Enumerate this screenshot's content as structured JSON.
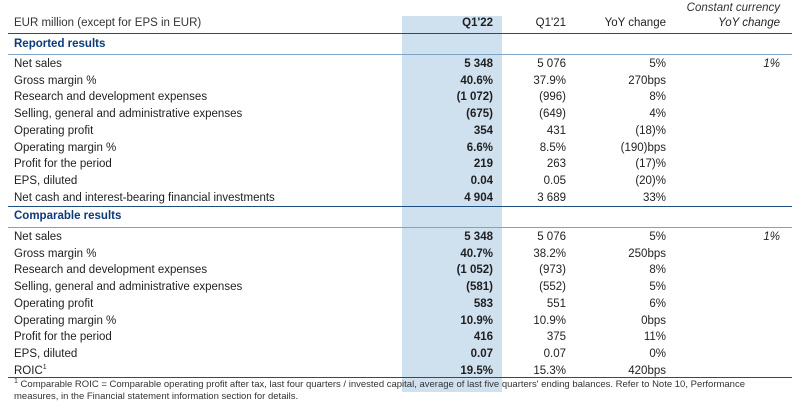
{
  "header": {
    "units": "EUR million (except for EPS in EUR)",
    "col_q1_22": "Q1'22",
    "col_q1_21": "Q1'21",
    "col_yoy": "YoY change",
    "col_cc_line1": "Constant currency",
    "col_cc_line2": "YoY change"
  },
  "reported": {
    "title": "Reported results",
    "rows": [
      {
        "label": "Net sales",
        "q1_22": "5 348",
        "q1_21": "5 076",
        "yoy": "5%",
        "cc": "1%"
      },
      {
        "label": "Gross margin %",
        "q1_22": "40.6%",
        "q1_21": "37.9%",
        "yoy": "270bps",
        "cc": ""
      },
      {
        "label": "Research and development expenses",
        "q1_22": "(1 072)",
        "q1_21": "(996)",
        "yoy": "8%",
        "cc": ""
      },
      {
        "label": "Selling, general and administrative expenses",
        "q1_22": "(675)",
        "q1_21": "(649)",
        "yoy": "4%",
        "cc": ""
      },
      {
        "label": "Operating profit",
        "q1_22": "354",
        "q1_21": "431",
        "yoy": "(18)%",
        "cc": ""
      },
      {
        "label": "Operating margin %",
        "q1_22": "6.6%",
        "q1_21": "8.5%",
        "yoy": "(190)bps",
        "cc": ""
      },
      {
        "label": "Profit for the period",
        "q1_22": "219",
        "q1_21": "263",
        "yoy": "(17)%",
        "cc": ""
      },
      {
        "label": "EPS, diluted",
        "q1_22": "0.04",
        "q1_21": "0.05",
        "yoy": "(20)%",
        "cc": ""
      },
      {
        "label": "Net cash and interest-bearing financial investments",
        "q1_22": "4 904",
        "q1_21": "3 689",
        "yoy": "33%",
        "cc": ""
      }
    ]
  },
  "comparable": {
    "title": "Comparable results",
    "rows": [
      {
        "label": "Net sales",
        "q1_22": "5 348",
        "q1_21": "5 076",
        "yoy": "5%",
        "cc": "1%"
      },
      {
        "label": "Gross margin %",
        "q1_22": "40.7%",
        "q1_21": "38.2%",
        "yoy": "250bps",
        "cc": ""
      },
      {
        "label": "Research and development expenses",
        "q1_22": "(1 052)",
        "q1_21": "(973)",
        "yoy": "8%",
        "cc": ""
      },
      {
        "label": "Selling, general and administrative expenses",
        "q1_22": "(581)",
        "q1_21": "(552)",
        "yoy": "5%",
        "cc": ""
      },
      {
        "label": "Operating profit",
        "q1_22": "583",
        "q1_21": "551",
        "yoy": "6%",
        "cc": ""
      },
      {
        "label": "Operating margin %",
        "q1_22": "10.9%",
        "q1_21": "10.9%",
        "yoy": "0bps",
        "cc": ""
      },
      {
        "label": "Profit for the period",
        "q1_22": "416",
        "q1_21": "375",
        "yoy": "11%",
        "cc": ""
      },
      {
        "label": "EPS, diluted",
        "q1_22": "0.07",
        "q1_21": "0.07",
        "yoy": "0%",
        "cc": ""
      },
      {
        "label": "ROIC",
        "label_sup": "1",
        "q1_22": "19.5%",
        "q1_21": "15.3%",
        "yoy": "420bps",
        "cc": ""
      }
    ]
  },
  "footnote": {
    "sup": "1",
    "text": " Comparable ROIC = Comparable operating profit after tax, last four quarters / invested capital, average of last five quarters' ending balances. Refer to Note 10, Performance measures, in the Financial statement information section for details."
  }
}
